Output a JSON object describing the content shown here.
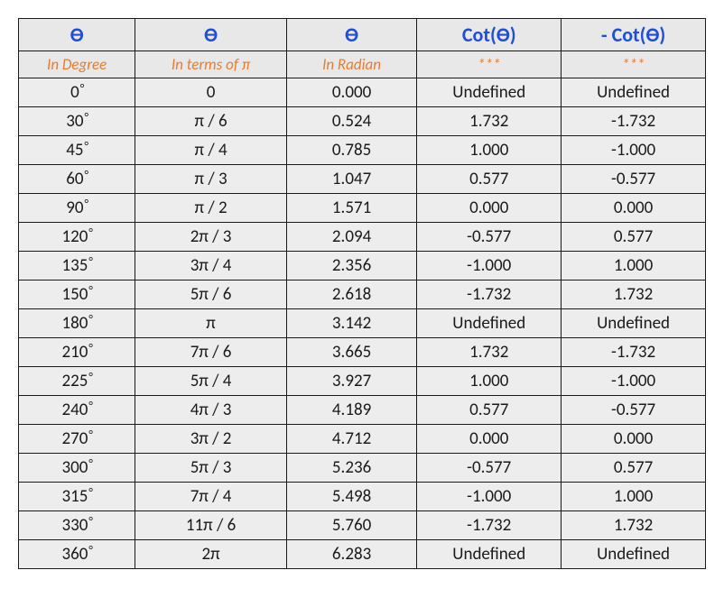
{
  "table": {
    "type": "table",
    "background_color": "#ffffff",
    "cell_background": "#ededed",
    "header_background": "#e8e8e8",
    "border_color": "#1a1a1a",
    "header_color": "#1f4fd6",
    "subheader_color": "#e87b2e",
    "data_text_color": "#1a1a1a",
    "header_fontsize": 22,
    "subheader_fontsize": 17,
    "data_fontsize": 19,
    "column_widths_pct": [
      17,
      22,
      19,
      21,
      21
    ],
    "columns": {
      "headers": [
        "ϴ",
        "ϴ",
        "ϴ",
        "Cot(ϴ)",
        "- Cot(ϴ)"
      ],
      "subheaders": [
        "In Degree",
        "In terms of π",
        "In Radian",
        "***",
        "***"
      ]
    },
    "rows": [
      {
        "degree": "0",
        "pi": "0",
        "radian": "0.000",
        "cot": "Undefined",
        "ncot": "Undefined"
      },
      {
        "degree": "30",
        "pi": "π / 6",
        "radian": "0.524",
        "cot": "1.732",
        "ncot": "-1.732"
      },
      {
        "degree": "45",
        "pi": "π / 4",
        "radian": "0.785",
        "cot": "1.000",
        "ncot": "-1.000"
      },
      {
        "degree": "60",
        "pi": "π / 3",
        "radian": "1.047",
        "cot": "0.577",
        "ncot": "-0.577"
      },
      {
        "degree": "90",
        "pi": "π / 2",
        "radian": "1.571",
        "cot": "0.000",
        "ncot": "0.000"
      },
      {
        "degree": "120",
        "pi": "2π / 3",
        "radian": "2.094",
        "cot": "-0.577",
        "ncot": "0.577"
      },
      {
        "degree": "135",
        "pi": "3π / 4",
        "radian": "2.356",
        "cot": "-1.000",
        "ncot": "1.000"
      },
      {
        "degree": "150",
        "pi": "5π / 6",
        "radian": "2.618",
        "cot": "-1.732",
        "ncot": "1.732"
      },
      {
        "degree": "180",
        "pi": "π",
        "radian": "3.142",
        "cot": "Undefined",
        "ncot": "Undefined"
      },
      {
        "degree": "210",
        "pi": "7π / 6",
        "radian": "3.665",
        "cot": "1.732",
        "ncot": "-1.732"
      },
      {
        "degree": "225",
        "pi": "5π / 4",
        "radian": "3.927",
        "cot": "1.000",
        "ncot": "-1.000"
      },
      {
        "degree": "240",
        "pi": "4π / 3",
        "radian": "4.189",
        "cot": "0.577",
        "ncot": "-0.577"
      },
      {
        "degree": "270",
        "pi": "3π / 2",
        "radian": "4.712",
        "cot": "0.000",
        "ncot": "0.000"
      },
      {
        "degree": "300",
        "pi": "5π / 3",
        "radian": "5.236",
        "cot": "-0.577",
        "ncot": "0.577"
      },
      {
        "degree": "315",
        "pi": "7π / 4",
        "radian": "5.498",
        "cot": "-1.000",
        "ncot": "1.000"
      },
      {
        "degree": "330",
        "pi": "11π / 6",
        "radian": "5.760",
        "cot": "-1.732",
        "ncot": "1.732"
      },
      {
        "degree": "360",
        "pi": "2π",
        "radian": "6.283",
        "cot": "Undefined",
        "ncot": "Undefined"
      }
    ]
  }
}
